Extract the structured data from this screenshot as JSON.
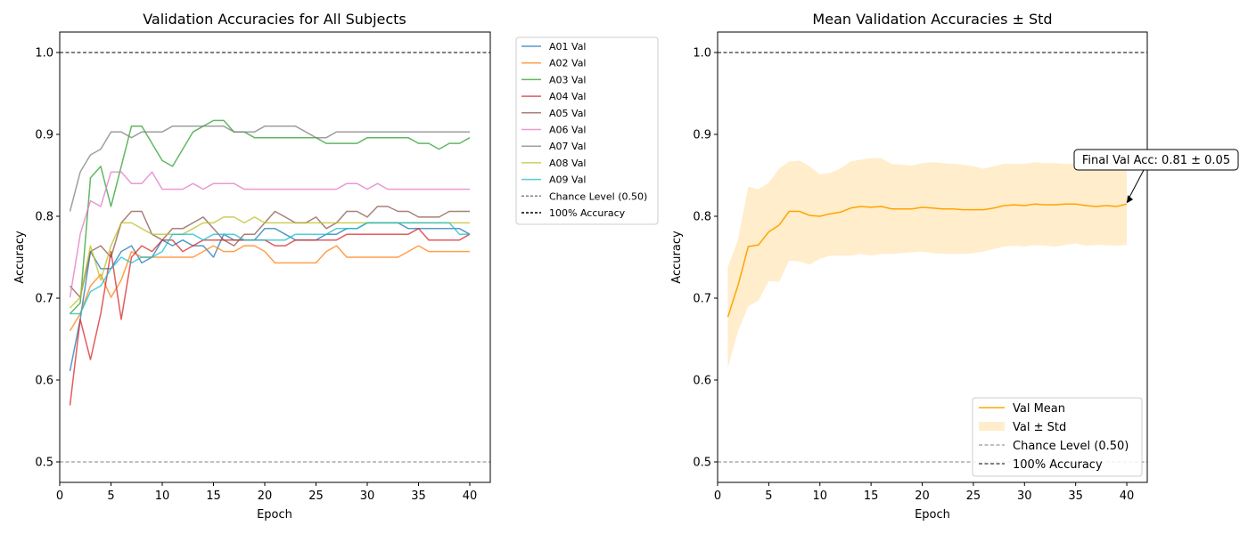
{
  "chart_data": [
    {
      "type": "line",
      "title": "Validation Accuracies for All Subjects",
      "xlabel": "Epoch",
      "ylabel": "Accuracy",
      "xlim": [
        0,
        42
      ],
      "ylim": [
        0.475,
        1.025
      ],
      "xticks": [
        0,
        5,
        10,
        15,
        20,
        25,
        30,
        35,
        40
      ],
      "yticks": [
        0.5,
        0.6,
        0.7,
        0.8,
        0.9,
        1.0
      ],
      "xtick_labels": [
        "0",
        "5",
        "10",
        "15",
        "20",
        "25",
        "30",
        "35",
        "40"
      ],
      "ytick_labels": [
        "0.5",
        "0.6",
        "0.7",
        "0.8",
        "0.9",
        "1.0"
      ],
      "legend_position": "outside-right",
      "x": [
        1,
        2,
        3,
        4,
        5,
        6,
        7,
        8,
        9,
        10,
        11,
        12,
        13,
        14,
        15,
        16,
        17,
        18,
        19,
        20,
        21,
        22,
        23,
        24,
        25,
        26,
        27,
        28,
        29,
        30,
        31,
        32,
        33,
        34,
        35,
        36,
        37,
        38,
        39,
        40
      ],
      "series": [
        {
          "name": "A01 Val",
          "color": "#1f77b4",
          "values": [
            0.611,
            0.674,
            0.757,
            0.736,
            0.736,
            0.757,
            0.764,
            0.743,
            0.75,
            0.771,
            0.764,
            0.771,
            0.764,
            0.764,
            0.75,
            0.778,
            0.771,
            0.771,
            0.771,
            0.785,
            0.785,
            0.778,
            0.771,
            0.771,
            0.771,
            0.778,
            0.778,
            0.785,
            0.785,
            0.792,
            0.792,
            0.792,
            0.792,
            0.785,
            0.785,
            0.785,
            0.785,
            0.785,
            0.785,
            0.778
          ]
        },
        {
          "name": "A02 Val",
          "color": "#ff7f0e",
          "values": [
            0.66,
            0.681,
            0.715,
            0.729,
            0.701,
            0.722,
            0.757,
            0.75,
            0.75,
            0.75,
            0.75,
            0.75,
            0.75,
            0.757,
            0.764,
            0.757,
            0.757,
            0.764,
            0.764,
            0.757,
            0.743,
            0.743,
            0.743,
            0.743,
            0.743,
            0.757,
            0.764,
            0.75,
            0.75,
            0.75,
            0.75,
            0.75,
            0.75,
            0.757,
            0.764,
            0.757,
            0.757,
            0.757,
            0.757,
            0.757
          ]
        },
        {
          "name": "A03 Val",
          "color": "#2ca02c",
          "values": [
            0.681,
            0.694,
            0.847,
            0.861,
            0.812,
            0.861,
            0.91,
            0.91,
            0.889,
            0.868,
            0.861,
            0.882,
            0.903,
            0.91,
            0.917,
            0.917,
            0.903,
            0.903,
            0.896,
            0.896,
            0.896,
            0.896,
            0.896,
            0.896,
            0.896,
            0.889,
            0.889,
            0.889,
            0.889,
            0.896,
            0.896,
            0.896,
            0.896,
            0.896,
            0.889,
            0.889,
            0.882,
            0.889,
            0.889,
            0.896
          ]
        },
        {
          "name": "A04 Val",
          "color": "#d62728",
          "values": [
            0.569,
            0.674,
            0.625,
            0.681,
            0.757,
            0.674,
            0.75,
            0.764,
            0.757,
            0.771,
            0.771,
            0.757,
            0.764,
            0.771,
            0.771,
            0.771,
            0.771,
            0.771,
            0.771,
            0.771,
            0.764,
            0.764,
            0.771,
            0.771,
            0.771,
            0.771,
            0.771,
            0.778,
            0.778,
            0.778,
            0.778,
            0.778,
            0.778,
            0.778,
            0.785,
            0.771,
            0.771,
            0.771,
            0.771,
            0.778
          ]
        },
        {
          "name": "A05 Val",
          "color": "#8c564b",
          "values": [
            0.715,
            0.701,
            0.757,
            0.764,
            0.75,
            0.792,
            0.806,
            0.806,
            0.778,
            0.771,
            0.785,
            0.785,
            0.792,
            0.799,
            0.785,
            0.771,
            0.764,
            0.778,
            0.778,
            0.792,
            0.806,
            0.799,
            0.792,
            0.792,
            0.799,
            0.785,
            0.792,
            0.806,
            0.806,
            0.799,
            0.812,
            0.812,
            0.806,
            0.806,
            0.799,
            0.799,
            0.799,
            0.806,
            0.806,
            0.806
          ]
        },
        {
          "name": "A06 Val",
          "color": "#e377c2",
          "values": [
            0.701,
            0.778,
            0.819,
            0.812,
            0.854,
            0.854,
            0.84,
            0.84,
            0.854,
            0.833,
            0.833,
            0.833,
            0.84,
            0.833,
            0.84,
            0.84,
            0.84,
            0.833,
            0.833,
            0.833,
            0.833,
            0.833,
            0.833,
            0.833,
            0.833,
            0.833,
            0.833,
            0.84,
            0.84,
            0.833,
            0.84,
            0.833,
            0.833,
            0.833,
            0.833,
            0.833,
            0.833,
            0.833,
            0.833,
            0.833
          ]
        },
        {
          "name": "A07 Val",
          "color": "#7f7f7f",
          "values": [
            0.806,
            0.854,
            0.875,
            0.882,
            0.903,
            0.903,
            0.896,
            0.903,
            0.903,
            0.903,
            0.91,
            0.91,
            0.91,
            0.91,
            0.91,
            0.91,
            0.903,
            0.903,
            0.903,
            0.91,
            0.91,
            0.91,
            0.91,
            0.903,
            0.896,
            0.896,
            0.903,
            0.903,
            0.903,
            0.903,
            0.903,
            0.903,
            0.903,
            0.903,
            0.903,
            0.903,
            0.903,
            0.903,
            0.903,
            0.903
          ]
        },
        {
          "name": "A08 Val",
          "color": "#bcbd22",
          "values": [
            0.688,
            0.701,
            0.764,
            0.722,
            0.764,
            0.792,
            0.792,
            0.785,
            0.778,
            0.778,
            0.778,
            0.778,
            0.785,
            0.792,
            0.792,
            0.799,
            0.799,
            0.792,
            0.799,
            0.792,
            0.792,
            0.792,
            0.792,
            0.792,
            0.792,
            0.792,
            0.792,
            0.792,
            0.792,
            0.792,
            0.792,
            0.792,
            0.792,
            0.792,
            0.792,
            0.792,
            0.792,
            0.792,
            0.792,
            0.792
          ]
        },
        {
          "name": "A09 Val",
          "color": "#17becf",
          "values": [
            0.681,
            0.681,
            0.708,
            0.715,
            0.736,
            0.75,
            0.743,
            0.75,
            0.75,
            0.757,
            0.778,
            0.778,
            0.778,
            0.771,
            0.778,
            0.778,
            0.778,
            0.771,
            0.771,
            0.771,
            0.771,
            0.771,
            0.778,
            0.778,
            0.778,
            0.778,
            0.785,
            0.785,
            0.785,
            0.792,
            0.792,
            0.792,
            0.792,
            0.792,
            0.792,
            0.792,
            0.792,
            0.792,
            0.778,
            0.778
          ]
        }
      ],
      "reference_lines": [
        {
          "name": "Chance Level (0.50)",
          "y": 0.5,
          "color": "#808080"
        },
        {
          "name": "100% Accuracy",
          "y": 1.0,
          "color": "#000000"
        }
      ]
    },
    {
      "type": "line",
      "title": "Mean Validation Accuracies ± Std",
      "xlabel": "Epoch",
      "ylabel": "Accuracy",
      "xlim": [
        0,
        42
      ],
      "ylim": [
        0.475,
        1.025
      ],
      "xticks": [
        0,
        5,
        10,
        15,
        20,
        25,
        30,
        35,
        40
      ],
      "yticks": [
        0.5,
        0.6,
        0.7,
        0.8,
        0.9,
        1.0
      ],
      "xtick_labels": [
        "0",
        "5",
        "10",
        "15",
        "20",
        "25",
        "30",
        "35",
        "40"
      ],
      "ytick_labels": [
        "0.5",
        "0.6",
        "0.7",
        "0.8",
        "0.9",
        "1.0"
      ],
      "legend_position": "lower-right",
      "x": [
        1,
        2,
        3,
        4,
        5,
        6,
        7,
        8,
        9,
        10,
        11,
        12,
        13,
        14,
        15,
        16,
        17,
        18,
        19,
        20,
        21,
        22,
        23,
        24,
        25,
        26,
        27,
        28,
        29,
        30,
        31,
        32,
        33,
        34,
        35,
        36,
        37,
        38,
        39,
        40
      ],
      "series": [
        {
          "name": "Val Mean",
          "color": "#ffa500",
          "values": [
            0.677,
            0.716,
            0.763,
            0.765,
            0.781,
            0.789,
            0.806,
            0.806,
            0.801,
            0.8,
            0.803,
            0.805,
            0.81,
            0.812,
            0.811,
            0.812,
            0.809,
            0.809,
            0.809,
            0.811,
            0.81,
            0.809,
            0.809,
            0.808,
            0.808,
            0.808,
            0.81,
            0.813,
            0.814,
            0.813,
            0.815,
            0.814,
            0.814,
            0.815,
            0.815,
            0.813,
            0.812,
            0.813,
            0.812,
            0.815
          ]
        }
      ],
      "band": {
        "name": "Val ± Std",
        "color": "#ffa500",
        "lower": [
          0.615,
          0.66,
          0.69,
          0.697,
          0.721,
          0.72,
          0.746,
          0.745,
          0.741,
          0.748,
          0.752,
          0.752,
          0.752,
          0.754,
          0.752,
          0.754,
          0.754,
          0.755,
          0.756,
          0.757,
          0.755,
          0.754,
          0.754,
          0.754,
          0.755,
          0.757,
          0.76,
          0.763,
          0.764,
          0.763,
          0.765,
          0.764,
          0.763,
          0.765,
          0.767,
          0.764,
          0.765,
          0.765,
          0.764,
          0.765
        ],
        "upper": [
          0.738,
          0.772,
          0.836,
          0.833,
          0.841,
          0.858,
          0.867,
          0.868,
          0.861,
          0.851,
          0.853,
          0.858,
          0.867,
          0.869,
          0.871,
          0.871,
          0.864,
          0.863,
          0.862,
          0.865,
          0.866,
          0.865,
          0.864,
          0.863,
          0.861,
          0.858,
          0.861,
          0.864,
          0.864,
          0.864,
          0.866,
          0.865,
          0.865,
          0.864,
          0.864,
          0.863,
          0.86,
          0.861,
          0.86,
          0.864
        ]
      },
      "reference_lines": [
        {
          "name": "Chance Level (0.50)",
          "y": 0.5,
          "color": "#808080"
        },
        {
          "name": "100% Accuracy",
          "y": 1.0,
          "color": "#000000"
        }
      ],
      "annotation": {
        "text": "Final Val Acc: 0.81 ± 0.05",
        "x": 40,
        "y": 0.815
      }
    }
  ]
}
